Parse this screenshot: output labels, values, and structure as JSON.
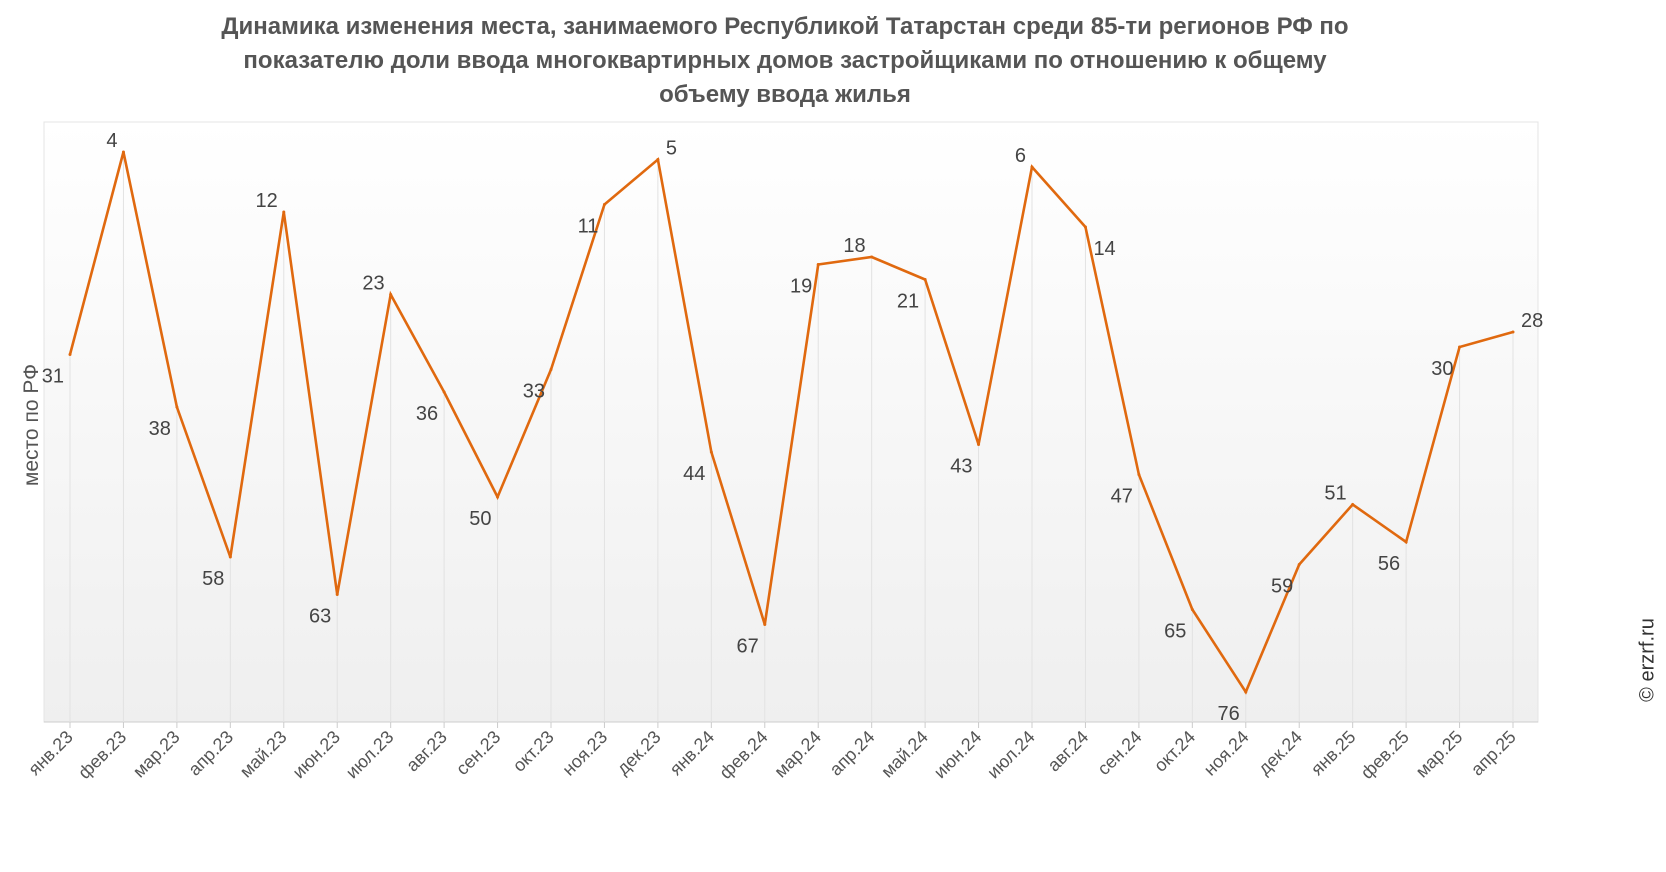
{
  "chart_data": {
    "type": "line",
    "title": "Динамика изменения места, занимаемого Республикой Татарстан среди 85-ти регионов РФ по показателю доли ввода многоквартирных домов застройщиками по отношению к общему объему ввода жилья",
    "title_lines": [
      "Динамика изменения места, занимаемого Республикой Татарстан среди 85-ти регионов РФ по",
      "показателю доли ввода многоквартирных домов застройщиками по отношению к общему",
      "объему ввода жилья"
    ],
    "ylabel": "место по РФ",
    "xlabel": "",
    "ylim": [
      0,
      80
    ],
    "y_reversed": true,
    "categories": [
      "янв.23",
      "фев.23",
      "мар.23",
      "апр.23",
      "май.23",
      "июн.23",
      "июл.23",
      "авг.23",
      "сен.23",
      "окт.23",
      "ноя.23",
      "дек.23",
      "янв.24",
      "фев.24",
      "мар.24",
      "апр.24",
      "май.24",
      "июн.24",
      "июл.24",
      "авг.24",
      "сен.24",
      "окт.24",
      "ноя.24",
      "дек.24",
      "янв.25",
      "фев.25",
      "мар.25",
      "апр.25"
    ],
    "series": [
      {
        "name": "место по РФ",
        "color": "#e0690f",
        "values": [
          31,
          4,
          38,
          58,
          12,
          63,
          23,
          36,
          50,
          33,
          11,
          5,
          44,
          67,
          19,
          18,
          21,
          43,
          6,
          14,
          47,
          65,
          76,
          59,
          51,
          56,
          30,
          28
        ]
      }
    ],
    "credit": "© erzrf.ru"
  }
}
